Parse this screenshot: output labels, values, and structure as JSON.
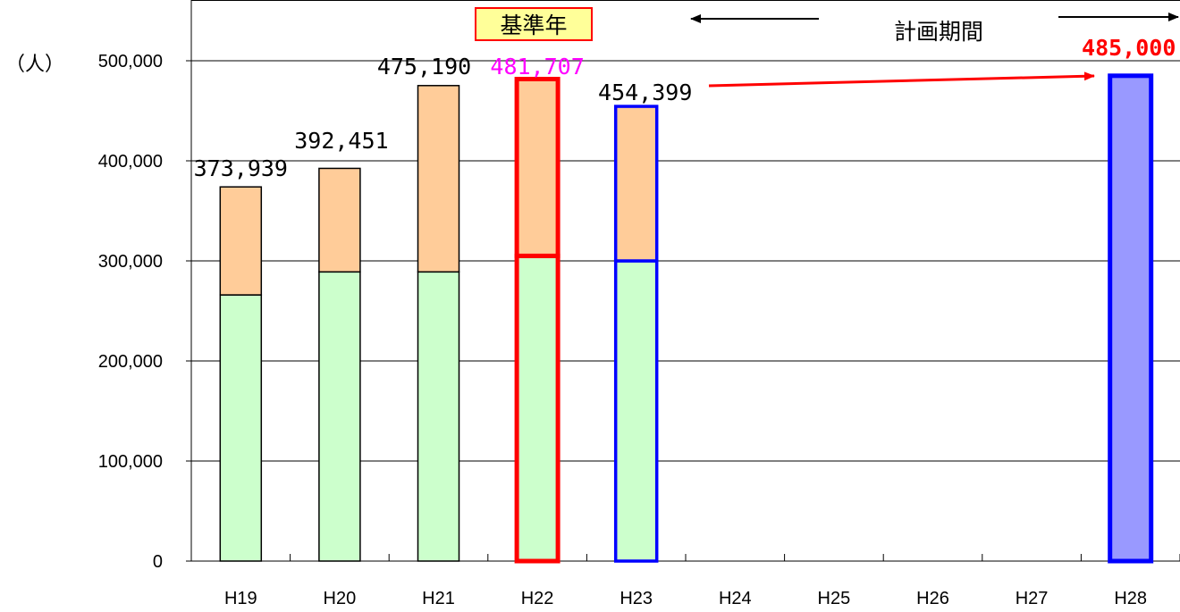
{
  "chart_data": {
    "type": "bar",
    "stacked": true,
    "unit_label": "（人）",
    "categories": [
      "H19",
      "H20",
      "H21",
      "H22",
      "H23",
      "H24",
      "H25",
      "H26",
      "H27",
      "H28"
    ],
    "series": [
      {
        "values": [
          266000,
          289000,
          289000,
          305000,
          300000,
          null,
          null,
          null,
          null,
          485000
        ]
      },
      {
        "values": [
          107939,
          103451,
          186190,
          176707,
          154399,
          null,
          null,
          null,
          null,
          0
        ]
      }
    ],
    "totals_labels": [
      "373,939",
      "392,451",
      "475,190",
      "481,707",
      "454,399",
      "",
      "",
      "",
      "",
      "485,000"
    ],
    "ylim": [
      0,
      500000
    ],
    "yticks": [
      0,
      100000,
      200000,
      300000,
      400000,
      500000
    ],
    "ytick_labels": [
      "0",
      "100,000",
      "200,000",
      "300,000",
      "400,000",
      "500,000"
    ],
    "grid": true,
    "annotations": {
      "base_year_label": "基準年",
      "plan_period_label": "計画期間"
    },
    "colors": {
      "lower_fill": "#ccffcc",
      "upper_fill": "#ffcc99",
      "target_fill": "#9999ff",
      "base_year_outline": "#ff0000",
      "plan_outline": "#0000ff",
      "base_year_label_color": "#ff00ff",
      "target_label_color": "#ff0000",
      "arrow_color": "#ff0000",
      "badge_fill": "#ffff99",
      "badge_border": "#ff0000"
    }
  }
}
